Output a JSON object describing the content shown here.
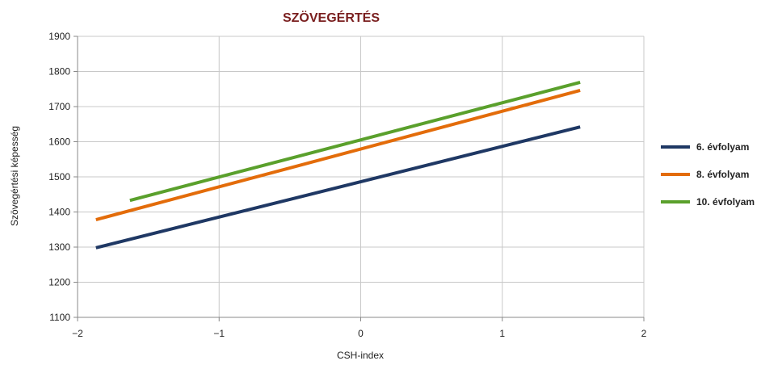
{
  "chart_data": {
    "type": "line",
    "title": "SZÖVEGÉRTÉS",
    "title_color": "#7a1f1f",
    "xlabel": "CSH-index",
    "ylabel": "Szövegértési képesség",
    "xlim": [
      -2,
      2
    ],
    "ylim": [
      1100,
      1900
    ],
    "x_ticks": [
      -2,
      -1,
      0,
      1,
      2
    ],
    "x_tick_labels": [
      "−2",
      "−1",
      "0",
      "1",
      "2"
    ],
    "y_ticks": [
      1100,
      1200,
      1300,
      1400,
      1500,
      1600,
      1700,
      1800,
      1900
    ],
    "y_tick_labels": [
      "1100",
      "1200",
      "1300",
      "1400",
      "1500",
      "1600",
      "1700",
      "1800",
      "1900"
    ],
    "grid": true,
    "legend_position": "right",
    "series": [
      {
        "name": "6. évfolyam",
        "color": "#1f3864",
        "x": [
          -1.87,
          1.55
        ],
        "y": [
          1298,
          1642
        ]
      },
      {
        "name": "8. évfolyam",
        "color": "#e36c0a",
        "x": [
          -1.87,
          1.55
        ],
        "y": [
          1378,
          1746
        ]
      },
      {
        "name": "10. évfolyam",
        "color": "#5aa02c",
        "x": [
          -1.63,
          1.55
        ],
        "y": [
          1433,
          1769
        ]
      }
    ]
  }
}
